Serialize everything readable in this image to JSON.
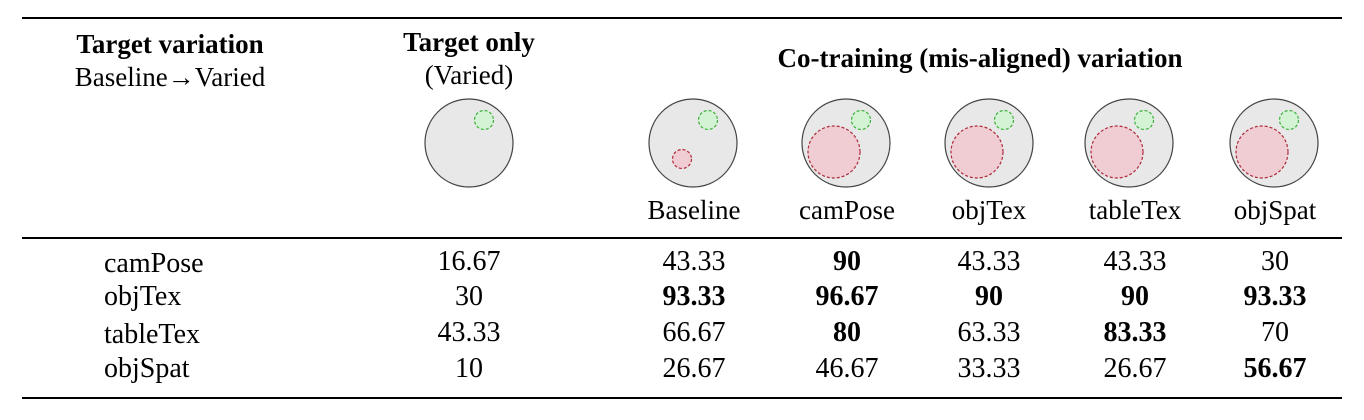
{
  "header": {
    "target_variation_title": "Target variation",
    "target_variation_sub": "Baseline→Varied",
    "target_only_title": "Target only",
    "target_only_sub": "(Varied)",
    "cotraining_title": "Co-training (mis-aligned) variation"
  },
  "columns": [
    "Baseline",
    "camPose",
    "objTex",
    "tableTex",
    "objSpat"
  ],
  "rows": [
    {
      "label": "camPose",
      "target_only": "16.67",
      "values": [
        "43.33",
        "90",
        "43.33",
        "43.33",
        "30"
      ],
      "bold": [
        false,
        true,
        false,
        false,
        false
      ]
    },
    {
      "label": "objTex",
      "target_only": "30",
      "values": [
        "93.33",
        "96.67",
        "90",
        "90",
        "93.33"
      ],
      "bold": [
        true,
        true,
        true,
        true,
        true
      ]
    },
    {
      "label": "tableTex",
      "target_only": "43.33",
      "values": [
        "66.67",
        "80",
        "63.33",
        "83.33",
        "70"
      ],
      "bold": [
        false,
        true,
        false,
        true,
        false
      ]
    },
    {
      "label": "objSpat",
      "target_only": "10",
      "values": [
        "26.67",
        "46.67",
        "33.33",
        "26.67",
        "56.67"
      ],
      "bold": [
        false,
        false,
        false,
        false,
        true
      ]
    }
  ],
  "colors": {
    "circle_fill": "#e8e8e8",
    "green_fill": "#d4f2d4",
    "green_stroke": "#3bb33b",
    "red_fill": "#f0cdd2",
    "red_stroke": "#b02a3c"
  }
}
